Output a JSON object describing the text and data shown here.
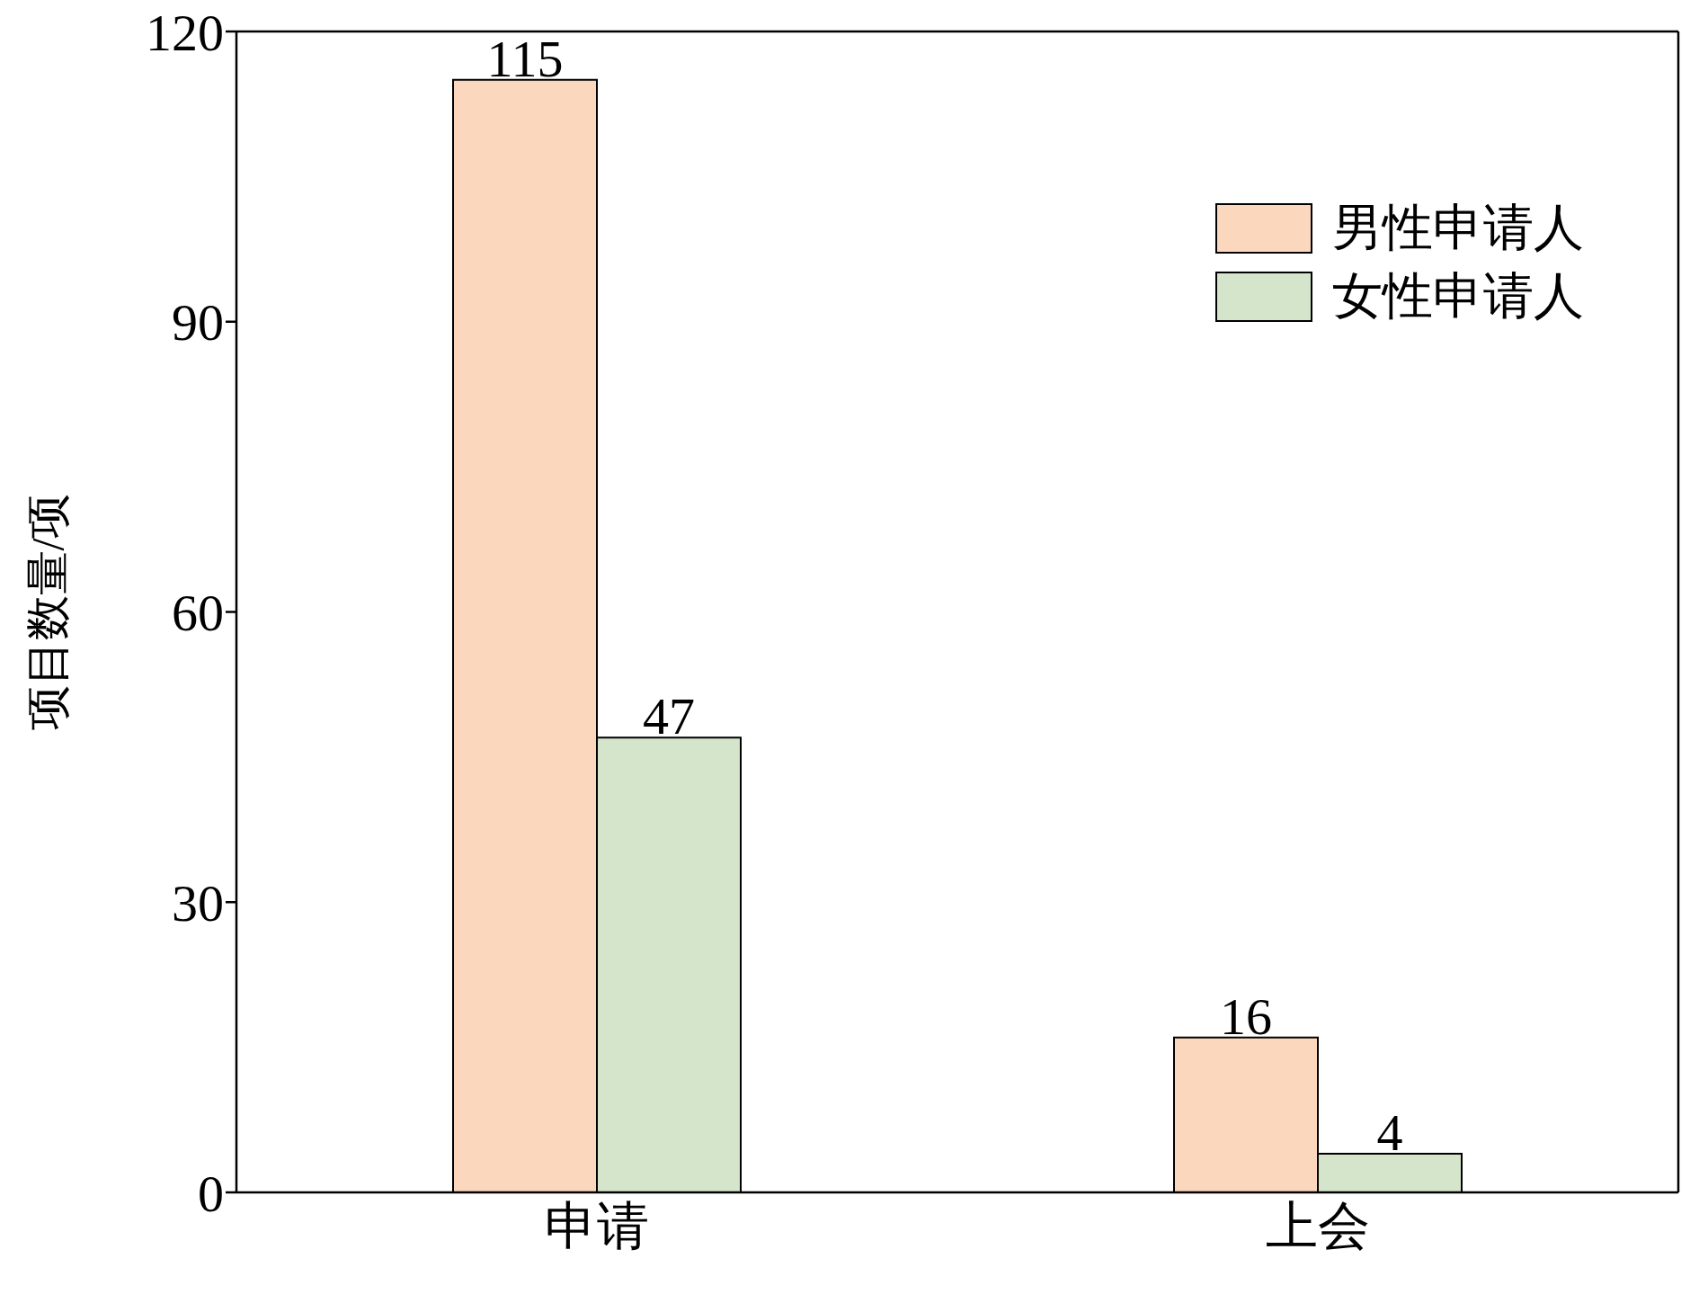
{
  "chart_data": {
    "type": "bar",
    "ylabel": "项目数量/项",
    "categories": [
      "申请",
      "上会"
    ],
    "series": [
      {
        "name": "男性申请人",
        "color": "#fbd8bd",
        "values": [
          115,
          16
        ]
      },
      {
        "name": "女性申请人",
        "color": "#d4e5cb",
        "values": [
          47,
          4
        ]
      }
    ],
    "ylim": [
      0,
      120
    ],
    "yticks": [
      0,
      30,
      60,
      90,
      120
    ],
    "data_labels": true,
    "legend": "top right",
    "grid": false
  }
}
